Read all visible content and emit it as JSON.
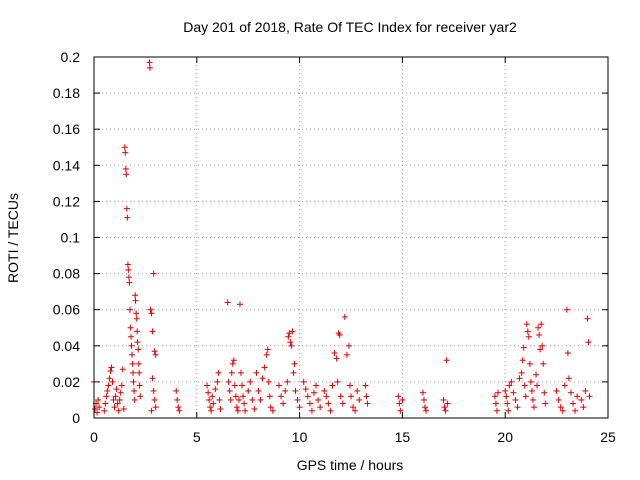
{
  "chart_data": {
    "type": "scatter",
    "title": "Day 201 of 2018, Rate Of TEC Index for receiver yar2",
    "xlabel": "GPS time / hours",
    "ylabel": "ROTI / TECUs",
    "xlim": [
      0,
      25
    ],
    "ylim": [
      0,
      0.2
    ],
    "x_ticks": [
      0,
      5,
      10,
      15,
      20,
      25
    ],
    "x_tick_labels": [
      "0",
      "5",
      "10",
      "15",
      "20",
      "25"
    ],
    "y_ticks": [
      0,
      0.02,
      0.04,
      0.06,
      0.08,
      0.1,
      0.12,
      0.14,
      0.16,
      0.18,
      0.2
    ],
    "y_tick_labels": [
      "0",
      "0.02",
      "0.04",
      "0.06",
      "0.08",
      "0.1",
      "0.12",
      "0.14",
      "0.16",
      "0.18",
      "0.2"
    ],
    "grid": true,
    "marker": "+",
    "marker_color": "#e00000",
    "series": [
      {
        "name": "ROTI",
        "points": [
          [
            0.0,
            0.02
          ],
          [
            0.05,
            0.005
          ],
          [
            0.1,
            0.008
          ],
          [
            0.15,
            0.003
          ],
          [
            0.2,
            0.01
          ],
          [
            0.25,
            0.006
          ],
          [
            0.5,
            0.004
          ],
          [
            0.55,
            0.008
          ],
          [
            0.6,
            0.012
          ],
          [
            0.65,
            0.015
          ],
          [
            0.7,
            0.018
          ],
          [
            0.75,
            0.022
          ],
          [
            0.8,
            0.026
          ],
          [
            0.85,
            0.028
          ],
          [
            0.9,
            0.02
          ],
          [
            0.95,
            0.01
          ],
          [
            1.0,
            0.006
          ],
          [
            1.05,
            0.012
          ],
          [
            1.1,
            0.016
          ],
          [
            1.15,
            0.008
          ],
          [
            1.2,
            0.004
          ],
          [
            1.25,
            0.01
          ],
          [
            1.3,
            0.014
          ],
          [
            1.35,
            0.018
          ],
          [
            1.4,
            0.027
          ],
          [
            1.45,
            0.005
          ],
          [
            1.5,
            0.15
          ],
          [
            1.52,
            0.147
          ],
          [
            1.55,
            0.138
          ],
          [
            1.57,
            0.135
          ],
          [
            1.6,
            0.116
          ],
          [
            1.62,
            0.111
          ],
          [
            1.65,
            0.085
          ],
          [
            1.67,
            0.082
          ],
          [
            1.7,
            0.078
          ],
          [
            1.72,
            0.075
          ],
          [
            1.75,
            0.06
          ],
          [
            1.78,
            0.05
          ],
          [
            1.8,
            0.045
          ],
          [
            1.82,
            0.04
          ],
          [
            1.85,
            0.035
          ],
          [
            1.88,
            0.03
          ],
          [
            1.9,
            0.025
          ],
          [
            1.92,
            0.02
          ],
          [
            1.95,
            0.015
          ],
          [
            1.98,
            0.01
          ],
          [
            2.0,
            0.068
          ],
          [
            2.02,
            0.065
          ],
          [
            2.05,
            0.058
          ],
          [
            2.08,
            0.055
          ],
          [
            2.1,
            0.048
          ],
          [
            2.12,
            0.042
          ],
          [
            2.15,
            0.038
          ],
          [
            2.18,
            0.03
          ],
          [
            2.2,
            0.025
          ],
          [
            2.22,
            0.018
          ],
          [
            2.25,
            0.012
          ],
          [
            2.7,
            0.197
          ],
          [
            2.72,
            0.194
          ],
          [
            2.75,
            0.06
          ],
          [
            2.8,
            0.058
          ],
          [
            2.85,
            0.048
          ],
          [
            2.9,
            0.08
          ],
          [
            2.95,
            0.037
          ],
          [
            3.0,
            0.035
          ],
          [
            2.85,
            0.022
          ],
          [
            2.9,
            0.015
          ],
          [
            2.95,
            0.01
          ],
          [
            3.0,
            0.006
          ],
          [
            2.8,
            0.004
          ],
          [
            4.0,
            0.015
          ],
          [
            4.05,
            0.01
          ],
          [
            4.1,
            0.006
          ],
          [
            4.15,
            0.004
          ],
          [
            5.5,
            0.018
          ],
          [
            5.55,
            0.014
          ],
          [
            5.6,
            0.01
          ],
          [
            5.65,
            0.006
          ],
          [
            5.7,
            0.004
          ],
          [
            5.75,
            0.012
          ],
          [
            5.8,
            0.008
          ],
          [
            5.9,
            0.016
          ],
          [
            6.0,
            0.02
          ],
          [
            6.05,
            0.025
          ],
          [
            6.1,
            0.01
          ],
          [
            6.15,
            0.005
          ],
          [
            6.5,
            0.064
          ],
          [
            6.55,
            0.02
          ],
          [
            6.6,
            0.015
          ],
          [
            6.65,
            0.01
          ],
          [
            6.7,
            0.025
          ],
          [
            6.75,
            0.03
          ],
          [
            6.8,
            0.032
          ],
          [
            6.85,
            0.018
          ],
          [
            6.9,
            0.012
          ],
          [
            6.95,
            0.006
          ],
          [
            7.0,
            0.004
          ],
          [
            7.05,
            0.01
          ],
          [
            7.1,
            0.063
          ],
          [
            7.15,
            0.025
          ],
          [
            7.2,
            0.018
          ],
          [
            7.25,
            0.012
          ],
          [
            7.3,
            0.008
          ],
          [
            7.35,
            0.004
          ],
          [
            7.5,
            0.015
          ],
          [
            7.6,
            0.02
          ],
          [
            7.7,
            0.01
          ],
          [
            7.8,
            0.005
          ],
          [
            7.9,
            0.025
          ],
          [
            8.0,
            0.015
          ],
          [
            8.1,
            0.01
          ],
          [
            8.2,
            0.022
          ],
          [
            8.3,
            0.028
          ],
          [
            8.4,
            0.035
          ],
          [
            8.45,
            0.038
          ],
          [
            8.5,
            0.02
          ],
          [
            8.55,
            0.012
          ],
          [
            8.6,
            0.006
          ],
          [
            8.7,
            0.004
          ],
          [
            9.0,
            0.018
          ],
          [
            9.1,
            0.012
          ],
          [
            9.2,
            0.008
          ],
          [
            9.3,
            0.015
          ],
          [
            9.4,
            0.02
          ],
          [
            9.45,
            0.045
          ],
          [
            9.5,
            0.047
          ],
          [
            9.55,
            0.042
          ],
          [
            9.6,
            0.04
          ],
          [
            9.65,
            0.048
          ],
          [
            9.7,
            0.025
          ],
          [
            9.75,
            0.03
          ],
          [
            9.8,
            0.015
          ],
          [
            9.9,
            0.01
          ],
          [
            10.0,
            0.006
          ],
          [
            10.2,
            0.02
          ],
          [
            10.3,
            0.016
          ],
          [
            10.4,
            0.012
          ],
          [
            10.5,
            0.008
          ],
          [
            10.6,
            0.004
          ],
          [
            10.7,
            0.014
          ],
          [
            10.8,
            0.018
          ],
          [
            10.9,
            0.01
          ],
          [
            11.0,
            0.006
          ],
          [
            11.2,
            0.015
          ],
          [
            11.3,
            0.012
          ],
          [
            11.4,
            0.008
          ],
          [
            11.5,
            0.004
          ],
          [
            11.6,
            0.018
          ],
          [
            11.7,
            0.036
          ],
          [
            11.8,
            0.033
          ],
          [
            11.85,
            0.02
          ],
          [
            11.9,
            0.047
          ],
          [
            11.95,
            0.046
          ],
          [
            12.0,
            0.012
          ],
          [
            12.1,
            0.008
          ],
          [
            12.2,
            0.056
          ],
          [
            12.3,
            0.035
          ],
          [
            12.4,
            0.04
          ],
          [
            12.45,
            0.018
          ],
          [
            12.5,
            0.012
          ],
          [
            12.6,
            0.006
          ],
          [
            12.7,
            0.004
          ],
          [
            12.8,
            0.015
          ],
          [
            12.9,
            0.01
          ],
          [
            13.2,
            0.018
          ],
          [
            13.25,
            0.012
          ],
          [
            13.3,
            0.008
          ],
          [
            14.8,
            0.012
          ],
          [
            14.85,
            0.008
          ],
          [
            14.9,
            0.004
          ],
          [
            15.0,
            0.01
          ],
          [
            16.0,
            0.014
          ],
          [
            16.05,
            0.01
          ],
          [
            16.1,
            0.006
          ],
          [
            16.15,
            0.004
          ],
          [
            17.0,
            0.01
          ],
          [
            17.05,
            0.006
          ],
          [
            17.1,
            0.004
          ],
          [
            17.15,
            0.032
          ],
          [
            17.2,
            0.008
          ],
          [
            19.5,
            0.012
          ],
          [
            19.55,
            0.008
          ],
          [
            19.6,
            0.004
          ],
          [
            19.65,
            0.014
          ],
          [
            20.0,
            0.015
          ],
          [
            20.05,
            0.012
          ],
          [
            20.1,
            0.008
          ],
          [
            20.15,
            0.004
          ],
          [
            20.2,
            0.018
          ],
          [
            20.3,
            0.02
          ],
          [
            20.4,
            0.014
          ],
          [
            20.5,
            0.01
          ],
          [
            20.6,
            0.006
          ],
          [
            20.7,
            0.022
          ],
          [
            20.8,
            0.025
          ],
          [
            20.85,
            0.032
          ],
          [
            20.9,
            0.039
          ],
          [
            20.95,
            0.018
          ],
          [
            21.0,
            0.012
          ],
          [
            21.05,
            0.052
          ],
          [
            21.1,
            0.048
          ],
          [
            21.15,
            0.045
          ],
          [
            21.2,
            0.03
          ],
          [
            21.25,
            0.02
          ],
          [
            21.3,
            0.015
          ],
          [
            21.35,
            0.01
          ],
          [
            21.4,
            0.006
          ],
          [
            21.5,
            0.024
          ],
          [
            21.55,
            0.018
          ],
          [
            21.6,
            0.05
          ],
          [
            21.65,
            0.046
          ],
          [
            21.7,
            0.038
          ],
          [
            21.75,
            0.052
          ],
          [
            21.8,
            0.04
          ],
          [
            21.85,
            0.03
          ],
          [
            21.9,
            0.014
          ],
          [
            21.95,
            0.008
          ],
          [
            22.5,
            0.015
          ],
          [
            22.6,
            0.01
          ],
          [
            22.7,
            0.006
          ],
          [
            22.8,
            0.004
          ],
          [
            22.9,
            0.018
          ],
          [
            23.0,
            0.06
          ],
          [
            23.05,
            0.036
          ],
          [
            23.1,
            0.022
          ],
          [
            23.2,
            0.014
          ],
          [
            23.3,
            0.008
          ],
          [
            23.4,
            0.004
          ],
          [
            23.5,
            0.012
          ],
          [
            23.7,
            0.01
          ],
          [
            23.8,
            0.006
          ],
          [
            23.9,
            0.015
          ],
          [
            24.0,
            0.055
          ],
          [
            24.05,
            0.042
          ],
          [
            24.1,
            0.012
          ]
        ]
      }
    ]
  }
}
